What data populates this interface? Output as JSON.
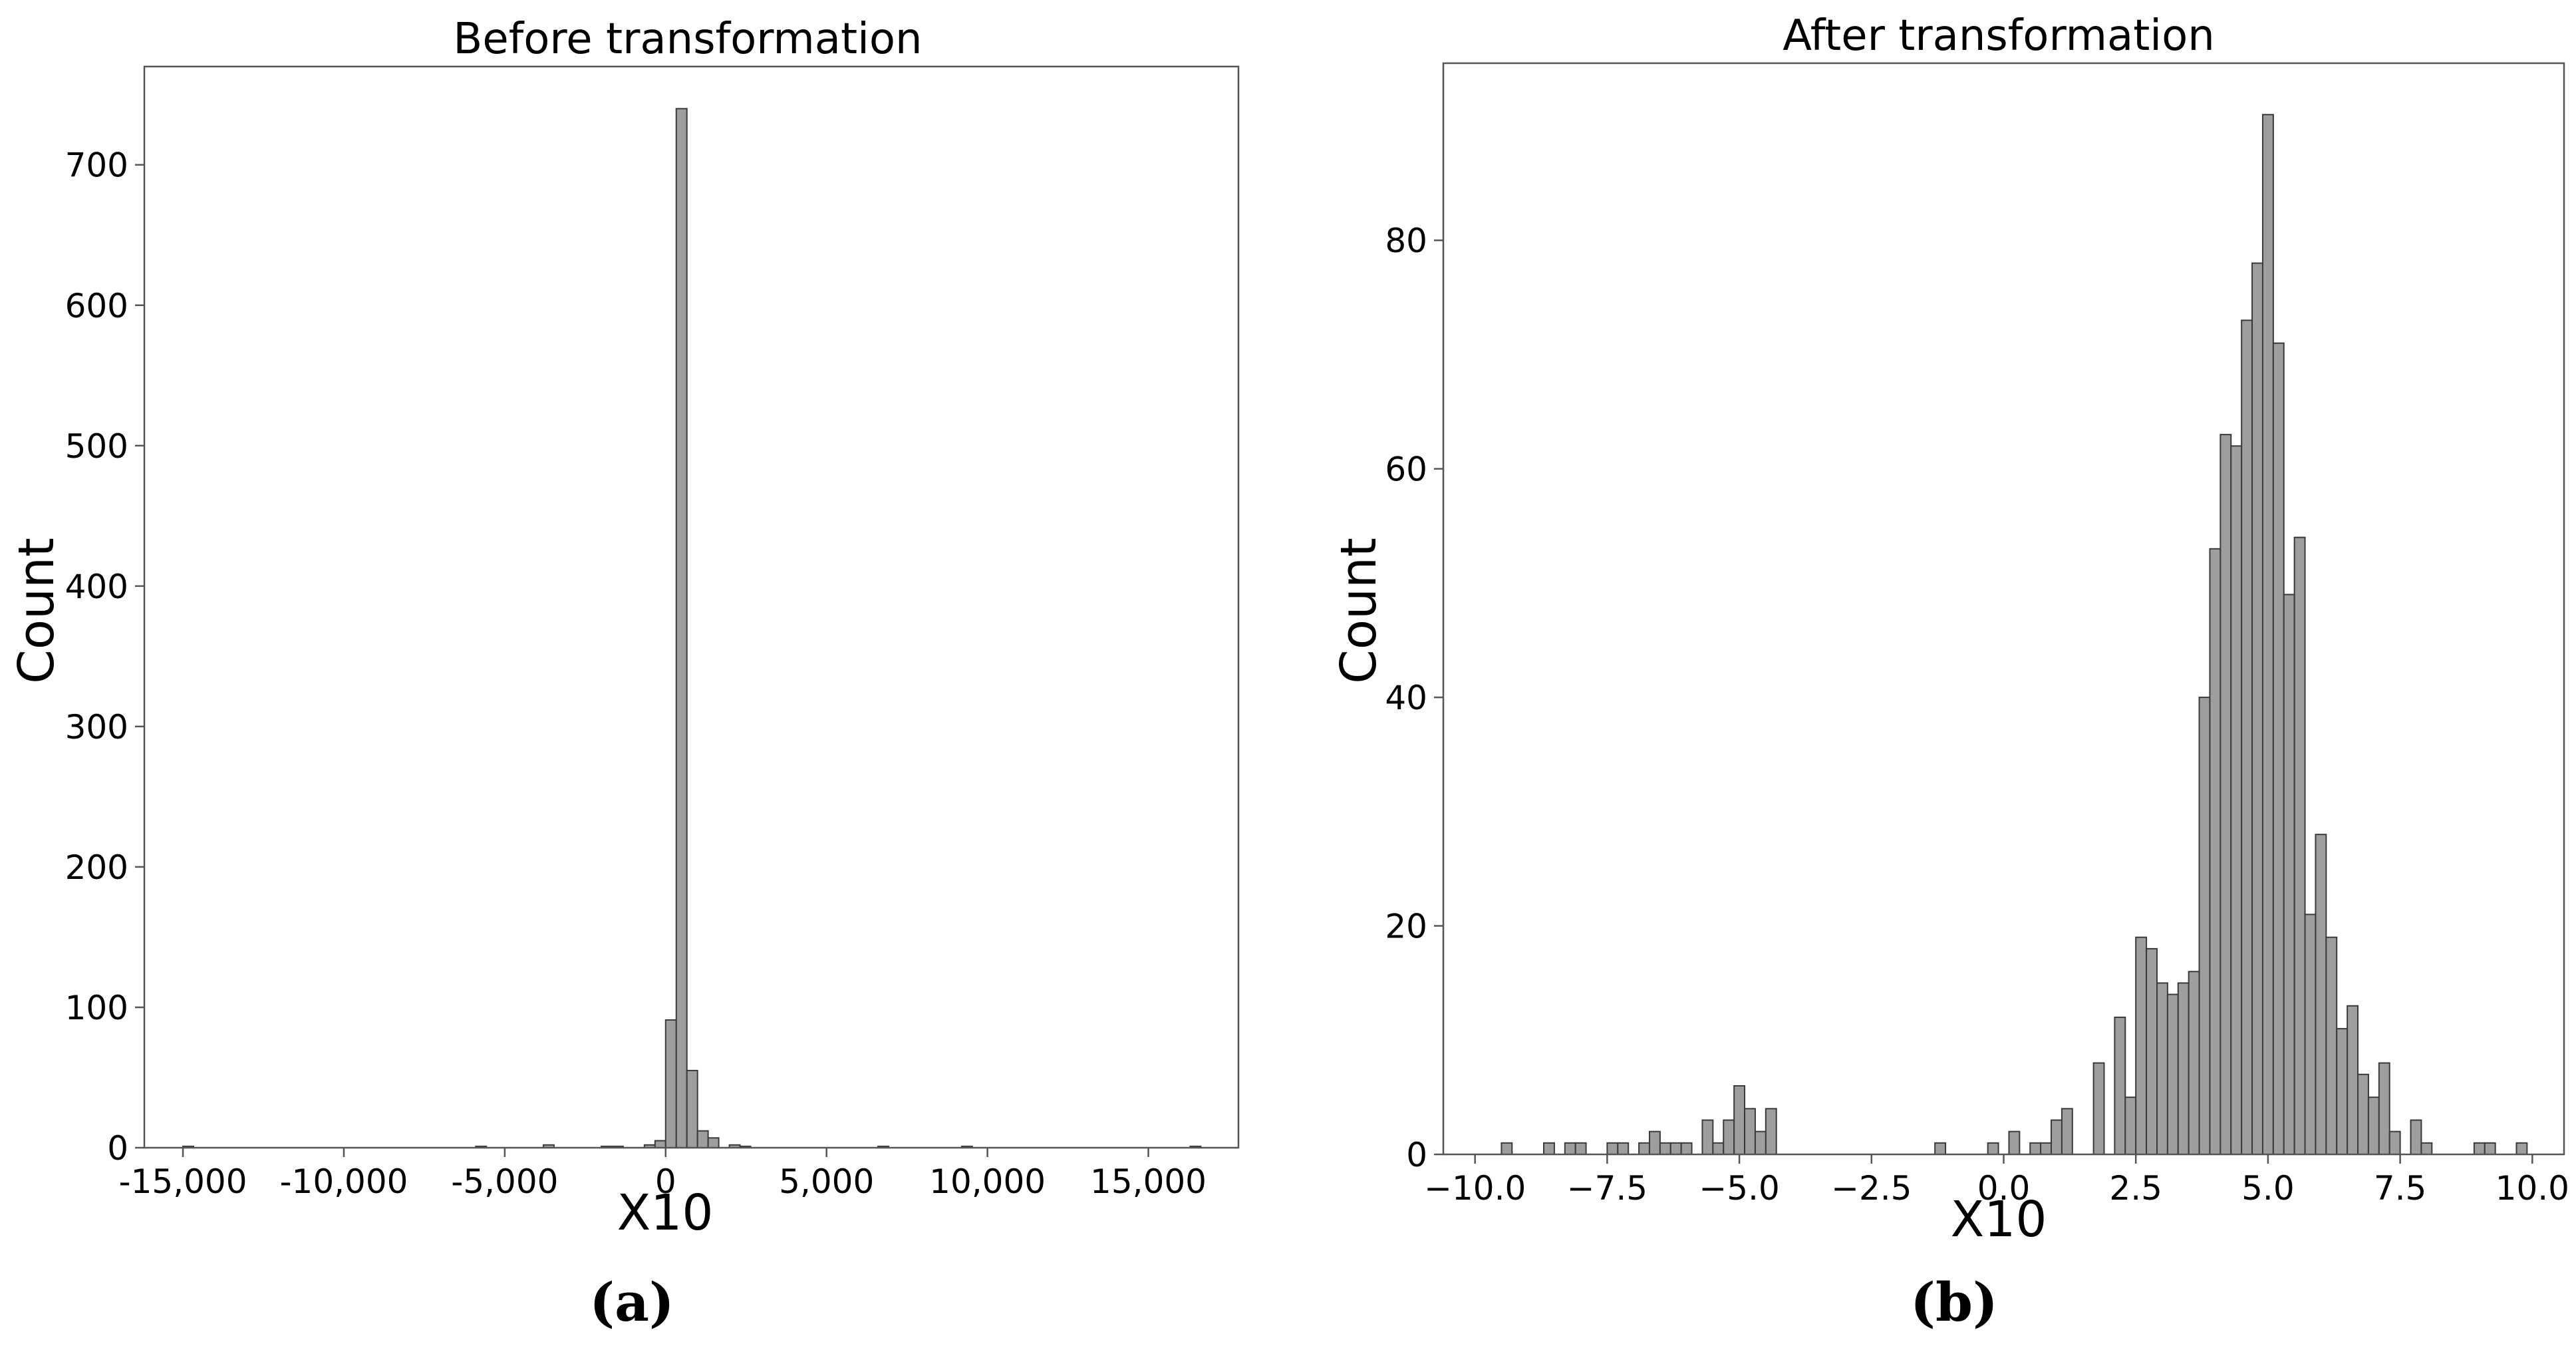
{
  "chart_data": [
    {
      "type": "bar",
      "title": "Before transformation",
      "xlabel": "X10",
      "ylabel": "Count",
      "xlim": [
        -16200,
        17800
      ],
      "ylim": [
        0,
        770
      ],
      "xticks": [
        {
          "value": -15000,
          "label": "-15,000"
        },
        {
          "value": -10000,
          "label": "-10,000"
        },
        {
          "value": -5000,
          "label": "-5,000"
        },
        {
          "value": 0,
          "label": "0"
        },
        {
          "value": 5000,
          "label": "5,000"
        },
        {
          "value": 10000,
          "label": "10,000"
        },
        {
          "value": 15000,
          "label": "15,000"
        }
      ],
      "yticks": [
        0,
        100,
        200,
        300,
        400,
        500,
        600,
        700
      ],
      "bin_width": 330,
      "bins": [
        {
          "x": -15000,
          "count": 1
        },
        {
          "x": -5900,
          "count": 1
        },
        {
          "x": -3800,
          "count": 2
        },
        {
          "x": -2000,
          "count": 1
        },
        {
          "x": -1650,
          "count": 1
        },
        {
          "x": -660,
          "count": 2
        },
        {
          "x": -330,
          "count": 5
        },
        {
          "x": 0,
          "count": 91
        },
        {
          "x": 330,
          "count": 740
        },
        {
          "x": 660,
          "count": 55
        },
        {
          "x": 990,
          "count": 12
        },
        {
          "x": 1320,
          "count": 7
        },
        {
          "x": 1980,
          "count": 2
        },
        {
          "x": 2310,
          "count": 1
        },
        {
          "x": 6600,
          "count": 1
        },
        {
          "x": 9200,
          "count": 1
        },
        {
          "x": 16300,
          "count": 1
        }
      ],
      "panel_label": "(a)"
    },
    {
      "type": "bar",
      "title": "After transformation",
      "xlabel": "X10",
      "ylabel": "Count",
      "xlim": [
        -10.6,
        10.6
      ],
      "ylim": [
        0,
        95.5
      ],
      "xticks": [
        {
          "value": -10,
          "label": "−10.0"
        },
        {
          "value": -7.5,
          "label": "−7.5"
        },
        {
          "value": -5,
          "label": "−5.0"
        },
        {
          "value": -2.5,
          "label": "−2.5"
        },
        {
          "value": 0,
          "label": "0.0"
        },
        {
          "value": 2.5,
          "label": "2.5"
        },
        {
          "value": 5,
          "label": "5.0"
        },
        {
          "value": 7.5,
          "label": "7.5"
        },
        {
          "value": 10,
          "label": "10.0"
        }
      ],
      "yticks": [
        0,
        20,
        40,
        60,
        80
      ],
      "bin_width": 0.2,
      "bins": [
        {
          "x": -9.5,
          "count": 1
        },
        {
          "x": -8.7,
          "count": 1
        },
        {
          "x": -8.3,
          "count": 1
        },
        {
          "x": -8.1,
          "count": 1
        },
        {
          "x": -7.5,
          "count": 1
        },
        {
          "x": -7.3,
          "count": 1
        },
        {
          "x": -6.9,
          "count": 1
        },
        {
          "x": -6.7,
          "count": 2
        },
        {
          "x": -6.5,
          "count": 1
        },
        {
          "x": -6.3,
          "count": 1
        },
        {
          "x": -6.1,
          "count": 1
        },
        {
          "x": -5.7,
          "count": 3
        },
        {
          "x": -5.5,
          "count": 1
        },
        {
          "x": -5.3,
          "count": 3
        },
        {
          "x": -5.1,
          "count": 6
        },
        {
          "x": -4.9,
          "count": 4
        },
        {
          "x": -4.7,
          "count": 2
        },
        {
          "x": -4.5,
          "count": 4
        },
        {
          "x": -1.3,
          "count": 1
        },
        {
          "x": -0.3,
          "count": 1
        },
        {
          "x": 0.1,
          "count": 2
        },
        {
          "x": 0.5,
          "count": 1
        },
        {
          "x": 0.7,
          "count": 1
        },
        {
          "x": 0.9,
          "count": 3
        },
        {
          "x": 1.1,
          "count": 4
        },
        {
          "x": 1.7,
          "count": 8
        },
        {
          "x": 2.1,
          "count": 12
        },
        {
          "x": 2.3,
          "count": 5
        },
        {
          "x": 2.5,
          "count": 19
        },
        {
          "x": 2.7,
          "count": 18
        },
        {
          "x": 2.9,
          "count": 15
        },
        {
          "x": 3.1,
          "count": 14
        },
        {
          "x": 3.3,
          "count": 15
        },
        {
          "x": 3.5,
          "count": 16
        },
        {
          "x": 3.7,
          "count": 40
        },
        {
          "x": 3.9,
          "count": 53
        },
        {
          "x": 4.1,
          "count": 63
        },
        {
          "x": 4.3,
          "count": 62
        },
        {
          "x": 4.5,
          "count": 73
        },
        {
          "x": 4.7,
          "count": 78
        },
        {
          "x": 4.9,
          "count": 91
        },
        {
          "x": 5.1,
          "count": 71
        },
        {
          "x": 5.3,
          "count": 49
        },
        {
          "x": 5.5,
          "count": 54
        },
        {
          "x": 5.7,
          "count": 21
        },
        {
          "x": 5.9,
          "count": 28
        },
        {
          "x": 6.1,
          "count": 19
        },
        {
          "x": 6.3,
          "count": 11
        },
        {
          "x": 6.5,
          "count": 13
        },
        {
          "x": 6.7,
          "count": 7
        },
        {
          "x": 6.9,
          "count": 5
        },
        {
          "x": 7.1,
          "count": 8
        },
        {
          "x": 7.3,
          "count": 2
        },
        {
          "x": 7.7,
          "count": 3
        },
        {
          "x": 7.9,
          "count": 1
        },
        {
          "x": 8.9,
          "count": 1
        },
        {
          "x": 9.1,
          "count": 1
        },
        {
          "x": 9.7,
          "count": 1
        }
      ],
      "panel_label": "(b)"
    }
  ],
  "colors": {
    "bar_fill": "#9e9e9e",
    "bar_edge": "#3a3a3a",
    "axes": "#555555"
  }
}
